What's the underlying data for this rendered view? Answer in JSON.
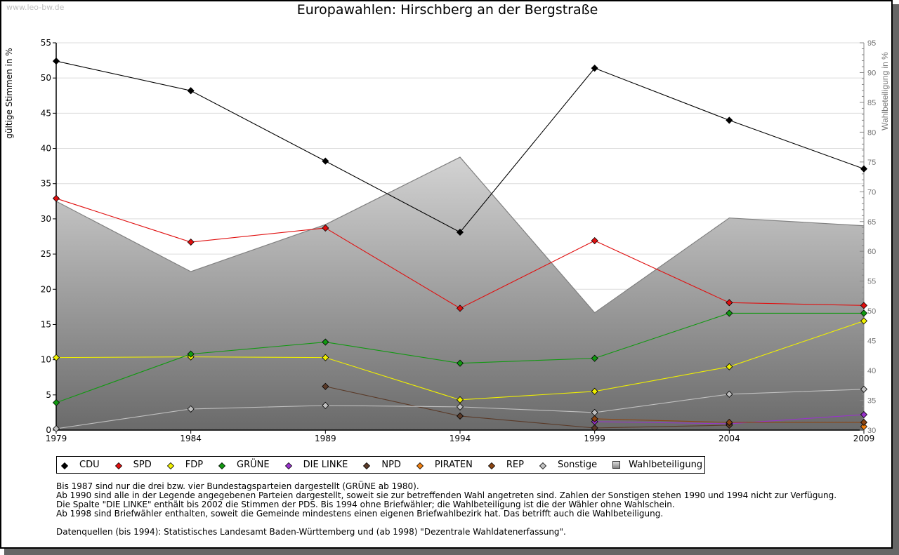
{
  "watermark": "www.leo-bw.de",
  "chart_data": {
    "type": "line",
    "title": "Europawahlen: Hirschberg an der Bergstraße",
    "xlabel": "",
    "ylabel": "gültige Stimmen in %",
    "y2label": "Wahlbeteiligung in %",
    "x": [
      "1979",
      "1984",
      "1989",
      "1994",
      "1999",
      "2004",
      "2009"
    ],
    "ylim": [
      0,
      55
    ],
    "y2lim": [
      30,
      95
    ],
    "yticks": [
      0,
      5,
      10,
      15,
      20,
      25,
      30,
      35,
      40,
      45,
      50,
      55
    ],
    "y2ticks": [
      30,
      35,
      40,
      45,
      50,
      55,
      60,
      65,
      70,
      75,
      80,
      85,
      90,
      95
    ],
    "grid": true,
    "legend_position": "bottom",
    "series": [
      {
        "name": "CDU",
        "color": "#000000",
        "values": [
          52.4,
          48.2,
          38.2,
          28.1,
          51.4,
          44.0,
          37.1
        ]
      },
      {
        "name": "SPD",
        "color": "#e01010",
        "values": [
          32.9,
          26.7,
          28.7,
          17.3,
          26.9,
          18.1,
          17.7
        ]
      },
      {
        "name": "FDP",
        "color": "#f0f000",
        "values": [
          10.3,
          10.4,
          10.3,
          4.3,
          5.5,
          9.0,
          15.5
        ]
      },
      {
        "name": "GRÜNE",
        "color": "#119911",
        "values": [
          3.9,
          10.8,
          12.5,
          9.5,
          10.2,
          16.6,
          16.6
        ]
      },
      {
        "name": "DIE LINKE",
        "color": "#9933cc",
        "values": [
          null,
          null,
          null,
          null,
          1.2,
          0.9,
          2.2
        ]
      },
      {
        "name": "NPD",
        "color": "#5a3a28",
        "values": [
          null,
          null,
          6.2,
          2.0,
          0.3,
          0.7,
          null
        ]
      },
      {
        "name": "PIRATEN",
        "color": "#f07f10",
        "values": [
          null,
          null,
          null,
          null,
          null,
          null,
          0.5
        ]
      },
      {
        "name": "REP",
        "color": "#8b4513",
        "values": [
          null,
          null,
          null,
          null,
          1.6,
          1.1,
          1.1
        ]
      },
      {
        "name": "Sonstige",
        "color": "#c0c0c0",
        "values": [
          0.2,
          3.0,
          3.5,
          3.3,
          2.5,
          5.1,
          5.8
        ]
      }
    ],
    "area_series": {
      "name": "Wahlbeteiligung",
      "axis": "right",
      "values": [
        68.4,
        56.6,
        64.5,
        75.8,
        49.7,
        65.6,
        64.3
      ]
    }
  },
  "notes": [
    "Bis 1987 sind nur die drei bzw. vier Bundestagsparteien dargestellt (GRÜNE ab 1980).",
    "Ab 1990 sind alle in der Legende angegebenen Parteien dargestellt, soweit sie zur betreffenden Wahl angetreten sind. Zahlen der Sonstigen stehen 1990 und 1994 nicht zur Verfügung.",
    "Die Spalte \"DIE LINKE\" enthält bis 2002 die Stimmen der PDS. Bis 1994 ohne Briefwähler; die Wahlbeteiligung ist die der Wähler ohne Wahlschein.",
    "Ab 1998 sind Briefwähler enthalten, soweit die Gemeinde mindestens einen eigenen Briefwahlbezirk hat. Das betrifft auch die Wahlbeteiligung."
  ],
  "source": "Datenquellen (bis 1994): Statistisches Landesamt Baden-Württemberg und (ab 1998) \"Dezentrale Wahldatenerfassung\"."
}
